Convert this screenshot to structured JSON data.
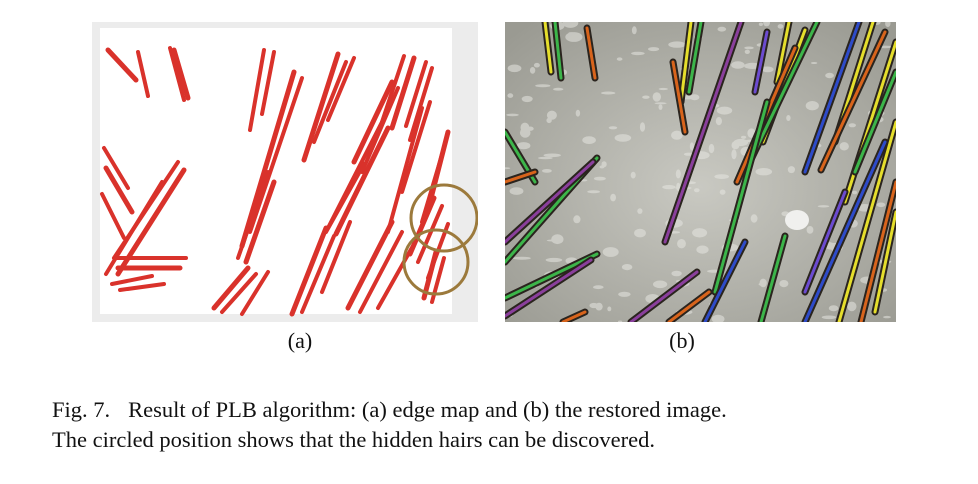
{
  "figure": {
    "panels": [
      {
        "id": "a",
        "label": "(a)",
        "content": "edge map"
      },
      {
        "id": "b",
        "label": "(b)",
        "content": "restored image"
      }
    ],
    "caption": {
      "number": "Fig. 7.",
      "line1": "Result of PLB algorithm: (a) edge map and (b) the restored image.",
      "line2": "The circled position shows that the hidden hairs can be discovered."
    },
    "colors": {
      "edge_line": "#d9322b",
      "panel_a_bg": "#ececec",
      "circle": "#9c7a3c",
      "skin": "#b7b7ad"
    }
  }
}
